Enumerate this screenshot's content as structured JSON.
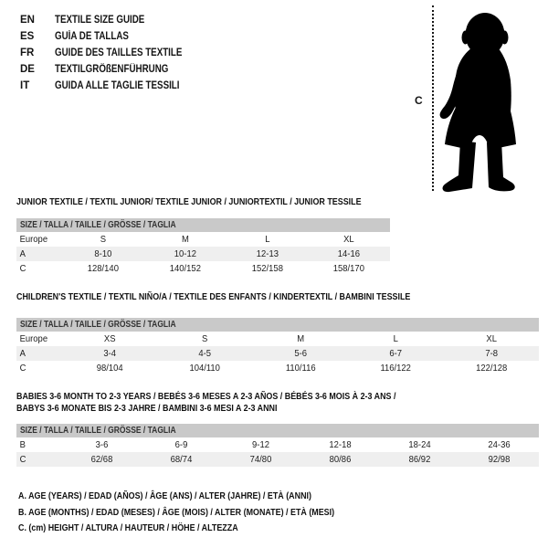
{
  "colors": {
    "background": "#ffffff",
    "text": "#141414",
    "table_header_bg": "#c9c9c9",
    "row_alt_bg": "#efefef",
    "silhouette": "#000000"
  },
  "language_guide": {
    "items": [
      {
        "code": "EN",
        "label": "TEXTILE SIZE GUIDE"
      },
      {
        "code": "ES",
        "label": "GUÍA DE TALLAS"
      },
      {
        "code": "FR",
        "label": "GUIDE DES TAILLES TEXTILE"
      },
      {
        "code": "DE",
        "label": "TEXTILGRÖßENFÜHRUNG"
      },
      {
        "code": "IT",
        "label": "GUIDA ALLE TAGLIE TESSILI"
      }
    ]
  },
  "figure": {
    "icon": "baby-silhouette",
    "measure_line": "dotted-vertical-height-line",
    "measure_label": "C"
  },
  "tables": [
    {
      "title": "JUNIOR TEXTILE / TEXTIL JUNIOR/ TEXTILE JUNIOR / JUNIORTEXTIL / JUNIOR TESSILE",
      "title_line2": "",
      "size_header": "SIZE / TALLA / TAILLE / GRÖSSE / TAGLIA",
      "rows": [
        [
          "Europe",
          "S",
          "M",
          "L",
          "XL"
        ],
        [
          "A",
          "8-10",
          "10-12",
          "12-13",
          "14-16"
        ],
        [
          "C",
          "128/140",
          "140/152",
          "152/158",
          "158/170"
        ]
      ]
    },
    {
      "title": "CHILDREN'S TEXTILE / TEXTIL NIÑO/A / TEXTILE DES ENFANTS / KINDERTEXTIL / BAMBINI TESSILE",
      "title_line2": "",
      "size_header": "SIZE / TALLA / TAILLE / GRÖSSE / TAGLIA",
      "rows": [
        [
          "Europe",
          "XS",
          "S",
          "M",
          "L",
          "XL"
        ],
        [
          "A",
          "3-4",
          "4-5",
          "5-6",
          "6-7",
          "7-8"
        ],
        [
          "C",
          "98/104",
          "104/110",
          "110/116",
          "116/122",
          "122/128"
        ]
      ]
    },
    {
      "title": "BABIES 3-6 MONTH TO 2-3 YEARS / BEBÉS 3-6 MESES A 2-3 AÑOS / BÉBÉS 3-6 MOIS À 2-3 ANS /",
      "title_line2": "BABYS 3-6 MONATE BIS 2-3 JAHRE / BAMBINI 3-6 MESI A 2-3 ANNI",
      "size_header": "SIZE / TALLA / TAILLE / GRÖSSE / TAGLIA",
      "rows": [
        [
          "B",
          "3-6",
          "6-9",
          "9-12",
          "12-18",
          "18-24",
          "24-36"
        ],
        [
          "C",
          "62/68",
          "68/74",
          "74/80",
          "80/86",
          "86/92",
          "92/98"
        ]
      ]
    }
  ],
  "footnotes": [
    "A. AGE (YEARS) / EDAD (AÑOS) / ÂGE (ANS) / ALTER (JAHRE) / ETÀ (ANNI)",
    "B. AGE (MONTHS) / EDAD (MESES) / ÂGE (MOIS) / ALTER (MONATE) / ETÀ (MESI)",
    "C. (cm) HEIGHT / ALTURA / HAUTEUR / HÖHE / ALTEZZA"
  ]
}
